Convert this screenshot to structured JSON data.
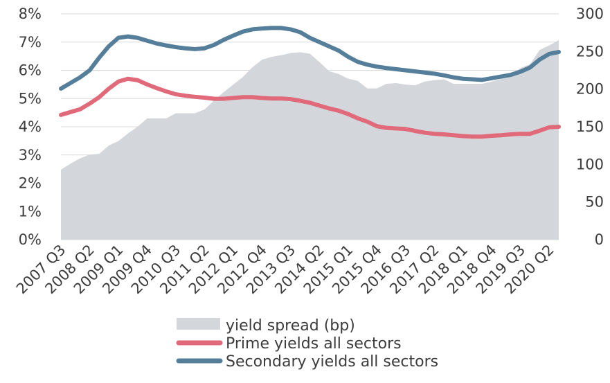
{
  "chart_data": {
    "type": "line",
    "x": [
      "2007 Q3",
      "2007 Q4",
      "2008 Q1",
      "2008 Q2",
      "2008 Q3",
      "2008 Q4",
      "2009 Q1",
      "2009 Q2",
      "2009 Q3",
      "2009 Q4",
      "2010 Q1",
      "2010 Q2",
      "2010 Q3",
      "2010 Q4",
      "2011 Q1",
      "2011 Q2",
      "2011 Q3",
      "2011 Q4",
      "2012 Q1",
      "2012 Q2",
      "2012 Q3",
      "2012 Q4",
      "2013 Q1",
      "2013 Q2",
      "2013 Q3",
      "2013 Q4",
      "2014 Q1",
      "2014 Q2",
      "2014 Q3",
      "2014 Q4",
      "2015 Q1",
      "2015 Q2",
      "2015 Q3",
      "2015 Q4",
      "2016 Q1",
      "2016 Q2",
      "2016 Q3",
      "2016 Q4",
      "2017 Q1",
      "2017 Q2",
      "2017 Q3",
      "2017 Q4",
      "2018 Q1",
      "2018 Q2",
      "2018 Q3",
      "2018 Q4",
      "2019 Q1",
      "2019 Q2",
      "2019 Q3",
      "2019 Q4",
      "2020 Q1",
      "2020 Q2",
      "2020 Q3"
    ],
    "x_tick_labels": [
      "2007 Q3",
      "2008 Q2",
      "2009 Q1",
      "2009 Q4",
      "2010 Q3",
      "2011 Q2",
      "2012 Q1",
      "2012 Q4",
      "2013 Q3",
      "2014 Q2",
      "2015 Q1",
      "2015 Q4",
      "2016 Q3",
      "2017 Q2",
      "2018 Q1",
      "2018 Q4",
      "2019 Q3",
      "2020 Q2"
    ],
    "y_left": {
      "min": 0,
      "max": 8,
      "step": 1,
      "tick_labels": [
        "0%",
        "1%",
        "2%",
        "3%",
        "4%",
        "5%",
        "6%",
        "7%",
        "8%"
      ]
    },
    "y_right": {
      "min": 0,
      "max": 300,
      "step": 50,
      "tick_labels": [
        "0",
        "50",
        "100",
        "150",
        "200",
        "250",
        "300"
      ]
    },
    "grid": true,
    "legend_position": "bottom",
    "series": [
      {
        "name": "yield spread (bp)",
        "kind": "area",
        "axis": "right",
        "color": "#d3d6da",
        "values": [
          93,
          101,
          108,
          113,
          114,
          125,
          131,
          141,
          150,
          161,
          161,
          161,
          168,
          168,
          168,
          173,
          185,
          196,
          206,
          216,
          229,
          239,
          243,
          245,
          248,
          249,
          247,
          236,
          224,
          220,
          214,
          211,
          201,
          201,
          207,
          208,
          206,
          205,
          210,
          212,
          213,
          207,
          207,
          207,
          207,
          210,
          214,
          219,
          228,
          233,
          252,
          258,
          265
        ]
      },
      {
        "name": "Prime yields all sectors",
        "kind": "line",
        "axis": "left",
        "color": "#e06a7a",
        "values": [
          4.42,
          4.52,
          4.62,
          4.82,
          5.05,
          5.35,
          5.6,
          5.7,
          5.65,
          5.5,
          5.37,
          5.25,
          5.15,
          5.1,
          5.06,
          5.03,
          4.99,
          4.99,
          5.02,
          5.05,
          5.05,
          5.02,
          5.0,
          5.0,
          4.98,
          4.92,
          4.85,
          4.75,
          4.65,
          4.57,
          4.45,
          4.3,
          4.18,
          4.02,
          3.96,
          3.94,
          3.92,
          3.85,
          3.79,
          3.75,
          3.73,
          3.7,
          3.67,
          3.65,
          3.65,
          3.68,
          3.7,
          3.73,
          3.75,
          3.75,
          3.86,
          3.98,
          4.0
        ]
      },
      {
        "name": "Secondary yields all sectors",
        "kind": "line",
        "axis": "left",
        "color": "#547e99",
        "values": [
          5.35,
          5.55,
          5.75,
          6.0,
          6.45,
          6.85,
          7.15,
          7.2,
          7.15,
          7.05,
          6.95,
          6.88,
          6.82,
          6.78,
          6.75,
          6.78,
          6.9,
          7.08,
          7.23,
          7.37,
          7.45,
          7.48,
          7.5,
          7.5,
          7.45,
          7.35,
          7.15,
          7.0,
          6.85,
          6.7,
          6.48,
          6.3,
          6.2,
          6.13,
          6.08,
          6.04,
          6.0,
          5.96,
          5.92,
          5.88,
          5.82,
          5.75,
          5.7,
          5.68,
          5.66,
          5.72,
          5.78,
          5.84,
          5.95,
          6.1,
          6.38,
          6.58,
          6.65
        ]
      }
    ]
  }
}
